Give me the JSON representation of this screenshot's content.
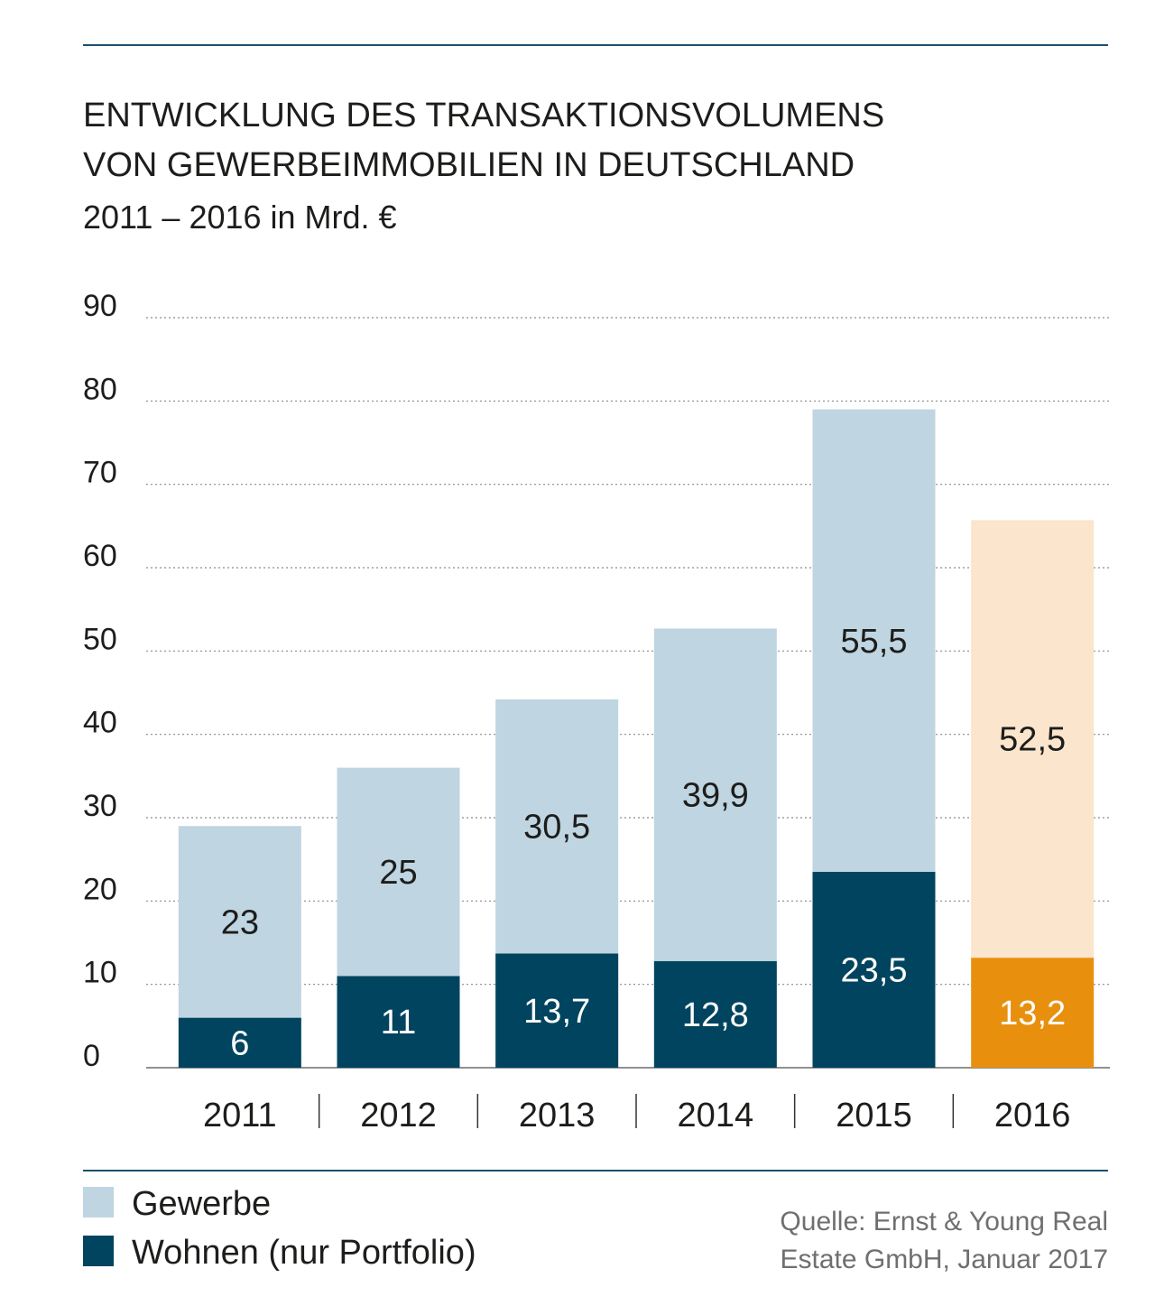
{
  "chart_data": {
    "type": "bar",
    "stacked": true,
    "title": [
      "ENTWICKLUNG DES TRANSAKTIONSVOLUMENS",
      "VON GEWERBEIMMOBILIEN IN DEUTSCHLAND"
    ],
    "subtitle": "2011 – 2016 in Mrd. €",
    "categories": [
      "2011",
      "2012",
      "2013",
      "2014",
      "2015",
      "2016"
    ],
    "yticks": [
      "0",
      "10",
      "20",
      "30",
      "40",
      "50",
      "60",
      "70",
      "80",
      "90"
    ],
    "ylim": [
      0,
      90
    ],
    "grid": true,
    "series": [
      {
        "name": "Wohnen (nur Portfolio)",
        "values": [
          6,
          11,
          13.7,
          12.8,
          23.5,
          13.2
        ],
        "labels": [
          "6",
          "11",
          "13,7",
          "12,8",
          "23,5",
          "13,2"
        ],
        "color": "#00445f",
        "highlight_color": "#e8900e",
        "label_color": "#ffffff"
      },
      {
        "name": "Gewerbe",
        "values": [
          23,
          25,
          30.5,
          39.9,
          55.5,
          52.5
        ],
        "labels": [
          "23",
          "25",
          "30,5",
          "39,9",
          "55,5",
          "52,5"
        ],
        "color": "#bfd5e1",
        "highlight_color": "#fbe5cd",
        "label_color": "#1d1d1b"
      }
    ],
    "highlight_category": "2016",
    "legend": [
      "Gewerbe",
      "Wohnen (nur Portfolio)"
    ],
    "legend_position": "bottom-left",
    "source": [
      "Quelle: Ernst & Young Real",
      "Estate GmbH, Januar 2017"
    ]
  }
}
